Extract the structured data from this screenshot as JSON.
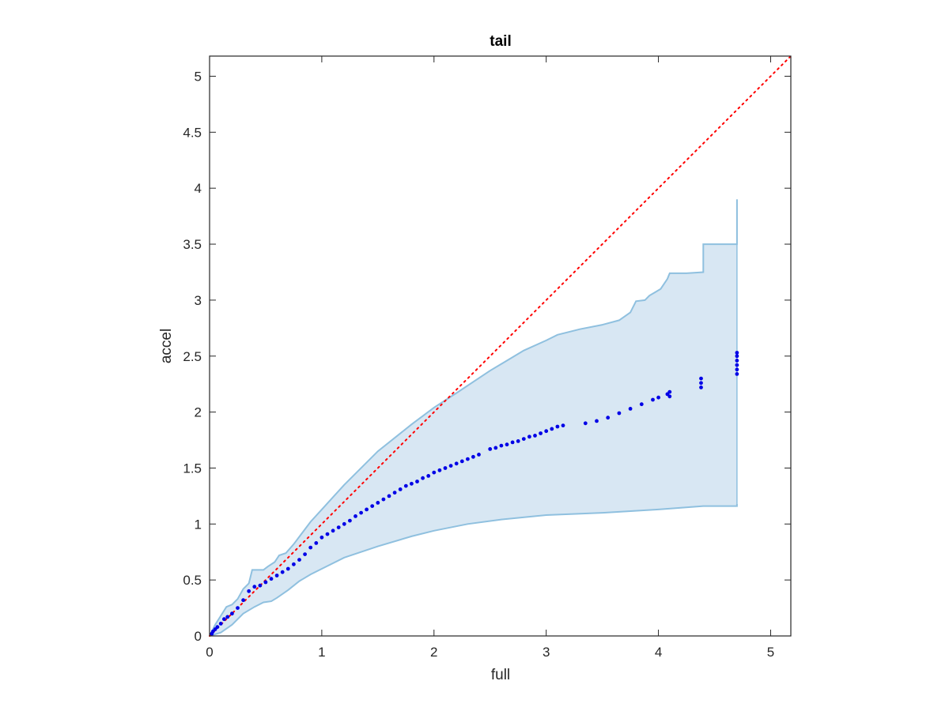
{
  "chart_data": {
    "type": "scatter",
    "title": "tail",
    "xlabel": "full",
    "ylabel": "accel",
    "xlim": [
      0,
      5.18
    ],
    "ylim": [
      0,
      5.18
    ],
    "xticks": [
      0,
      1,
      2,
      3,
      4,
      5
    ],
    "xtick_labels": [
      "0",
      "1",
      "2",
      "3",
      "4",
      "5"
    ],
    "yticks": [
      0,
      0.5,
      1,
      1.5,
      2,
      2.5,
      3,
      3.5,
      4,
      4.5,
      5
    ],
    "ytick_labels": [
      "0",
      "0.5",
      "1",
      "1.5",
      "2",
      "2.5",
      "3",
      "3.5",
      "4",
      "4.5",
      "5"
    ],
    "grid": false,
    "colors": {
      "points": "#0000e6",
      "band_fill": "#d8e7f3",
      "band_edge": "#8fc0df",
      "reference_line": "#ff0000",
      "axes": "#262626"
    },
    "reference_line": {
      "style": "dotted",
      "points": [
        [
          0,
          0
        ],
        [
          5.18,
          5.18
        ]
      ]
    },
    "band_upper": [
      [
        0,
        0
      ],
      [
        0.05,
        0.1
      ],
      [
        0.1,
        0.18
      ],
      [
        0.15,
        0.26
      ],
      [
        0.2,
        0.28
      ],
      [
        0.25,
        0.33
      ],
      [
        0.3,
        0.42
      ],
      [
        0.35,
        0.47
      ],
      [
        0.38,
        0.59
      ],
      [
        0.48,
        0.59
      ],
      [
        0.52,
        0.62
      ],
      [
        0.58,
        0.66
      ],
      [
        0.62,
        0.72
      ],
      [
        0.68,
        0.74
      ],
      [
        0.75,
        0.82
      ],
      [
        0.9,
        1.02
      ],
      [
        1.0,
        1.13
      ],
      [
        1.2,
        1.35
      ],
      [
        1.5,
        1.65
      ],
      [
        1.8,
        1.89
      ],
      [
        2.0,
        2.04
      ],
      [
        2.2,
        2.17
      ],
      [
        2.5,
        2.37
      ],
      [
        2.8,
        2.55
      ],
      [
        3.0,
        2.64
      ],
      [
        3.1,
        2.69
      ],
      [
        3.3,
        2.74
      ],
      [
        3.5,
        2.78
      ],
      [
        3.65,
        2.82
      ],
      [
        3.75,
        2.89
      ],
      [
        3.8,
        2.99
      ],
      [
        3.88,
        3.0
      ],
      [
        3.92,
        3.04
      ],
      [
        3.97,
        3.07
      ],
      [
        4.02,
        3.1
      ],
      [
        4.08,
        3.19
      ],
      [
        4.1,
        3.24
      ],
      [
        4.25,
        3.24
      ],
      [
        4.4,
        3.25
      ],
      [
        4.4,
        3.5
      ],
      [
        4.7,
        3.5
      ],
      [
        4.7,
        3.9
      ]
    ],
    "band_lower": [
      [
        0,
        0
      ],
      [
        0.1,
        0.03
      ],
      [
        0.2,
        0.1
      ],
      [
        0.3,
        0.2
      ],
      [
        0.4,
        0.26
      ],
      [
        0.48,
        0.3
      ],
      [
        0.55,
        0.31
      ],
      [
        0.6,
        0.34
      ],
      [
        0.7,
        0.41
      ],
      [
        0.8,
        0.49
      ],
      [
        0.9,
        0.55
      ],
      [
        1.0,
        0.6
      ],
      [
        1.2,
        0.7
      ],
      [
        1.5,
        0.8
      ],
      [
        1.8,
        0.89
      ],
      [
        2.0,
        0.94
      ],
      [
        2.3,
        1.0
      ],
      [
        2.6,
        1.04
      ],
      [
        3.0,
        1.08
      ],
      [
        3.5,
        1.1
      ],
      [
        4.0,
        1.13
      ],
      [
        4.4,
        1.16
      ],
      [
        4.7,
        1.16
      ],
      [
        4.7,
        1.18
      ]
    ],
    "series": [
      {
        "marker": "dot",
        "points": [
          [
            0.02,
            0.02
          ],
          [
            0.03,
            0.04
          ],
          [
            0.05,
            0.06
          ],
          [
            0.07,
            0.08
          ],
          [
            0.1,
            0.11
          ],
          [
            0.13,
            0.15
          ],
          [
            0.16,
            0.17
          ],
          [
            0.2,
            0.2
          ],
          [
            0.25,
            0.25
          ],
          [
            0.3,
            0.32
          ],
          [
            0.35,
            0.4
          ],
          [
            0.4,
            0.44
          ],
          [
            0.45,
            0.45
          ],
          [
            0.5,
            0.48
          ],
          [
            0.55,
            0.51
          ],
          [
            0.6,
            0.54
          ],
          [
            0.65,
            0.57
          ],
          [
            0.7,
            0.6
          ],
          [
            0.75,
            0.64
          ],
          [
            0.8,
            0.68
          ],
          [
            0.85,
            0.73
          ],
          [
            0.9,
            0.79
          ],
          [
            0.95,
            0.83
          ],
          [
            1.0,
            0.88
          ],
          [
            1.05,
            0.91
          ],
          [
            1.1,
            0.94
          ],
          [
            1.15,
            0.97
          ],
          [
            1.2,
            1.0
          ],
          [
            1.25,
            1.03
          ],
          [
            1.3,
            1.07
          ],
          [
            1.35,
            1.1
          ],
          [
            1.4,
            1.13
          ],
          [
            1.45,
            1.16
          ],
          [
            1.5,
            1.19
          ],
          [
            1.55,
            1.22
          ],
          [
            1.6,
            1.25
          ],
          [
            1.65,
            1.28
          ],
          [
            1.7,
            1.31
          ],
          [
            1.75,
            1.34
          ],
          [
            1.8,
            1.36
          ],
          [
            1.85,
            1.38
          ],
          [
            1.9,
            1.41
          ],
          [
            1.95,
            1.43
          ],
          [
            2.0,
            1.46
          ],
          [
            2.05,
            1.48
          ],
          [
            2.1,
            1.5
          ],
          [
            2.15,
            1.52
          ],
          [
            2.2,
            1.54
          ],
          [
            2.25,
            1.56
          ],
          [
            2.3,
            1.58
          ],
          [
            2.35,
            1.6
          ],
          [
            2.4,
            1.62
          ],
          [
            2.5,
            1.67
          ],
          [
            2.55,
            1.68
          ],
          [
            2.6,
            1.7
          ],
          [
            2.65,
            1.71
          ],
          [
            2.7,
            1.73
          ],
          [
            2.75,
            1.74
          ],
          [
            2.8,
            1.76
          ],
          [
            2.85,
            1.78
          ],
          [
            2.9,
            1.79
          ],
          [
            2.95,
            1.81
          ],
          [
            3.0,
            1.83
          ],
          [
            3.05,
            1.85
          ],
          [
            3.1,
            1.87
          ],
          [
            3.15,
            1.88
          ],
          [
            3.35,
            1.9
          ],
          [
            3.45,
            1.92
          ],
          [
            3.55,
            1.95
          ],
          [
            3.65,
            1.99
          ],
          [
            3.75,
            2.03
          ],
          [
            3.85,
            2.07
          ],
          [
            3.95,
            2.11
          ],
          [
            4.0,
            2.13
          ],
          [
            4.08,
            2.16
          ],
          [
            4.1,
            2.14
          ],
          [
            4.1,
            2.18
          ],
          [
            4.38,
            2.22
          ],
          [
            4.38,
            2.26
          ],
          [
            4.38,
            2.3
          ],
          [
            4.7,
            2.34
          ],
          [
            4.7,
            2.38
          ],
          [
            4.7,
            2.42
          ],
          [
            4.7,
            2.46
          ],
          [
            4.7,
            2.5
          ],
          [
            4.7,
            2.53
          ]
        ]
      }
    ]
  }
}
